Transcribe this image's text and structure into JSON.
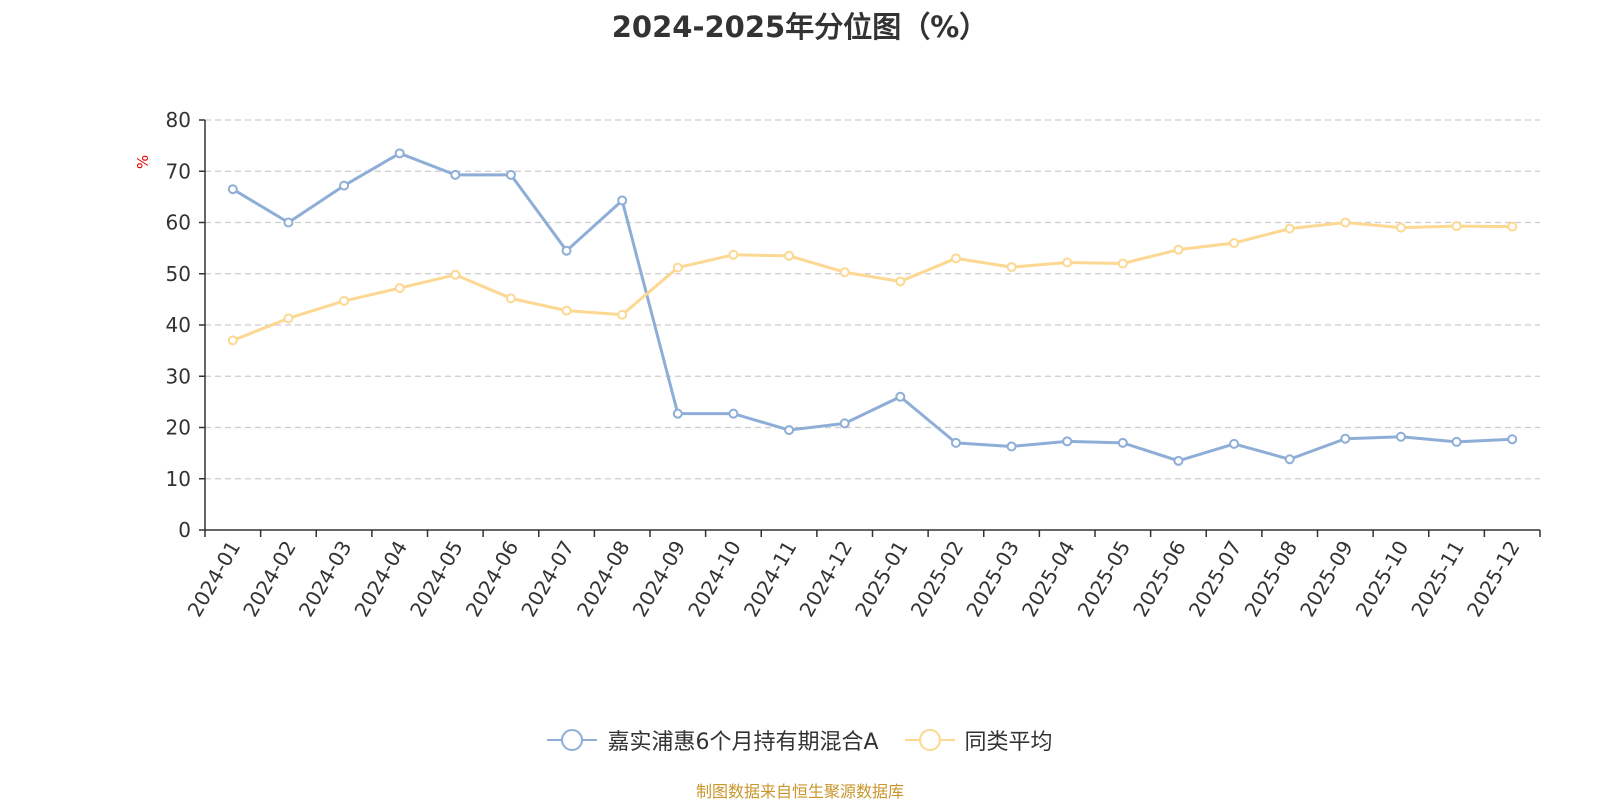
{
  "title": "2024-2025年分位图（%）",
  "source_note": "制图数据来自恒生聚源数据库",
  "colors": {
    "series_a": "#8eaed8",
    "series_b": "#fcd893",
    "grid": "#cccccc",
    "axis": "#333333",
    "unit": "#e60000",
    "source": "#c8962b"
  },
  "chart_data": {
    "type": "line",
    "title": "2024-2025年分位图（%）",
    "ylabel": "%",
    "ylim": [
      0,
      80
    ],
    "yticks": [
      0,
      10,
      20,
      30,
      40,
      50,
      60,
      70,
      80
    ],
    "grid": true,
    "legend_position": "bottom",
    "categories": [
      "2024-01",
      "2024-02",
      "2024-03",
      "2024-04",
      "2024-05",
      "2024-06",
      "2024-07",
      "2024-08",
      "2024-09",
      "2024-10",
      "2024-11",
      "2024-12",
      "2025-01",
      "2025-02",
      "2025-03",
      "2025-04",
      "2025-05",
      "2025-06",
      "2025-07",
      "2025-08",
      "2025-09",
      "2025-10",
      "2025-11",
      "2025-12"
    ],
    "series": [
      {
        "name": "嘉实浦惠6个月持有期混合A",
        "values": [
          66.5,
          60.0,
          67.2,
          73.5,
          69.3,
          69.3,
          54.5,
          64.3,
          22.7,
          22.7,
          19.5,
          20.8,
          26.0,
          17.0,
          16.3,
          17.3,
          17.0,
          13.5,
          16.8,
          13.8,
          17.8,
          18.2,
          17.2,
          17.7
        ]
      },
      {
        "name": "同类平均",
        "values": [
          37.0,
          41.3,
          44.7,
          47.2,
          49.8,
          45.2,
          42.8,
          42.0,
          51.2,
          53.7,
          53.5,
          50.3,
          48.5,
          53.0,
          51.3,
          52.2,
          52.0,
          54.7,
          56.0,
          58.8,
          60.0,
          59.0,
          59.3,
          59.2
        ]
      }
    ]
  }
}
